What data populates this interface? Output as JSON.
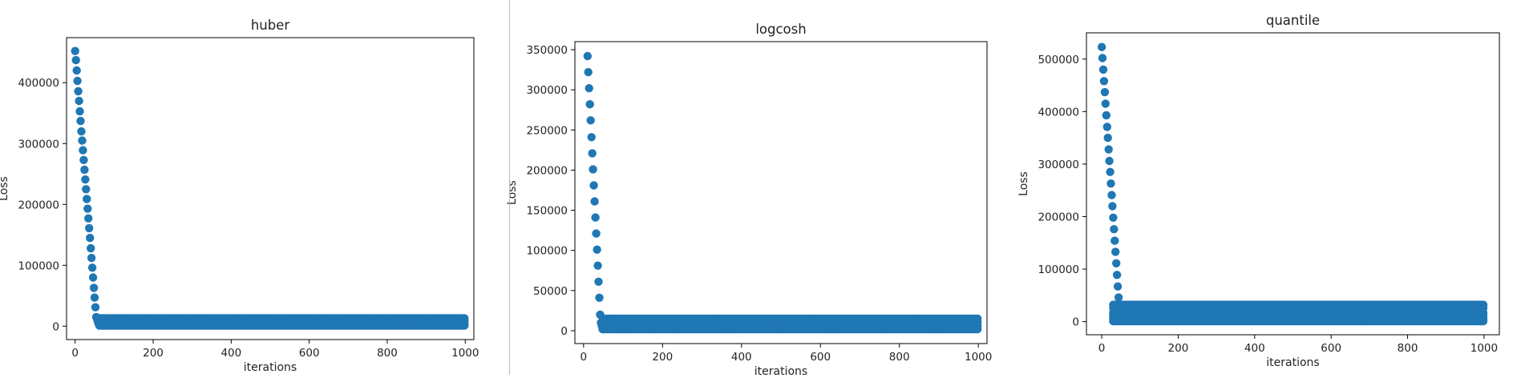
{
  "colors": {
    "marker": "#1f77b4",
    "axes": "#000000",
    "text": "#222222",
    "divider": "#b9b9b9"
  },
  "chart_data": [
    {
      "type": "scatter",
      "title": "huber",
      "xlabel": "iterations",
      "ylabel": "Loss",
      "xlim": [
        -22,
        1022
      ],
      "ylim": [
        -22000,
        474000
      ],
      "xticks": [
        0,
        200,
        400,
        600,
        800,
        1000
      ],
      "yticks": [
        0,
        100000,
        200000,
        300000,
        400000
      ],
      "grid": false,
      "legend": "none",
      "series": [
        {
          "spike": {
            "x": [
              0,
              2,
              4,
              6,
              8,
              10,
              12,
              14,
              16,
              18,
              20,
              22,
              24,
              26,
              28,
              30
            ],
            "y": [
              452000,
              437000,
              420000,
              403000,
              386000,
              370000,
              353000,
              337000,
              320000,
              305000,
              289000,
              273000,
              257000,
              241000,
              225000,
              209000
            ]
          },
          "spike2": {
            "x": [
              32,
              34,
              36,
              38,
              40,
              42,
              44,
              46,
              48,
              50,
              52,
              54,
              56,
              58,
              60,
              62
            ],
            "y": [
              193000,
              177000,
              161000,
              145000,
              128000,
              112000,
              96000,
              80000,
              63000,
              47000,
              31000,
              15000,
              12000,
              8000,
              4000,
              2000
            ]
          },
          "plateau": {
            "x_start": 62,
            "x_end": 1000,
            "y_values": [
              13000,
              9000,
              5000,
              1000
            ]
          }
        }
      ]
    },
    {
      "type": "scatter",
      "title": "logcosh",
      "xlabel": "iterations",
      "ylabel": "Loss",
      "xlim": [
        -22,
        1022
      ],
      "ylim": [
        -16000,
        360000
      ],
      "xticks": [
        0,
        200,
        400,
        600,
        800,
        1000
      ],
      "yticks": [
        0,
        50000,
        100000,
        150000,
        200000,
        250000,
        300000,
        350000
      ],
      "grid": false,
      "legend": "none",
      "series": [
        {
          "spike": {
            "x": [
              10,
              12,
              14,
              16,
              18,
              20,
              22,
              24,
              26,
              28,
              30
            ],
            "y": [
              342000,
              322000,
              302000,
              282000,
              262000,
              241000,
              221000,
              201000,
              181000,
              161000,
              141000
            ]
          },
          "spike2": {
            "x": [
              32,
              34,
              36,
              38,
              40,
              42,
              44,
              46,
              48,
              50
            ],
            "y": [
              121000,
              101000,
              81000,
              61000,
              41000,
              20000,
              10000,
              6000,
              2000,
              14000
            ]
          },
          "plateau": {
            "x_start": 50,
            "x_end": 1000,
            "y_values": [
              15000,
              11000,
              6000,
              2000
            ]
          }
        }
      ]
    },
    {
      "type": "scatter",
      "title": "quantile",
      "xlabel": "iterations",
      "ylabel": "Loss",
      "xlim": [
        -40,
        1040
      ],
      "ylim": [
        -25000,
        550000
      ],
      "xticks": [
        0,
        200,
        400,
        600,
        800,
        1000
      ],
      "yticks": [
        0,
        100000,
        200000,
        300000,
        400000,
        500000
      ],
      "grid": false,
      "legend": "none",
      "series": [
        {
          "spike": {
            "x": [
              0,
              2,
              4,
              6,
              8,
              10,
              12,
              14,
              16,
              18,
              20,
              22
            ],
            "y": [
              523000,
              502000,
              480000,
              458000,
              437000,
              415000,
              393000,
              371000,
              350000,
              328000,
              306000,
              285000
            ]
          },
          "spike2": {
            "x": [
              24,
              26,
              28,
              30,
              32,
              34,
              36,
              38,
              40,
              42,
              44,
              46
            ],
            "y": [
              263000,
              241000,
              220000,
              198000,
              176000,
              154000,
              133000,
              111000,
              89000,
              67000,
              46000,
              24000
            ]
          },
          "plateau": {
            "x_start": 30,
            "x_end": 1000,
            "y_values": [
              32000,
              26000,
              17000,
              12000,
              5000,
              1000
            ]
          }
        }
      ]
    }
  ]
}
